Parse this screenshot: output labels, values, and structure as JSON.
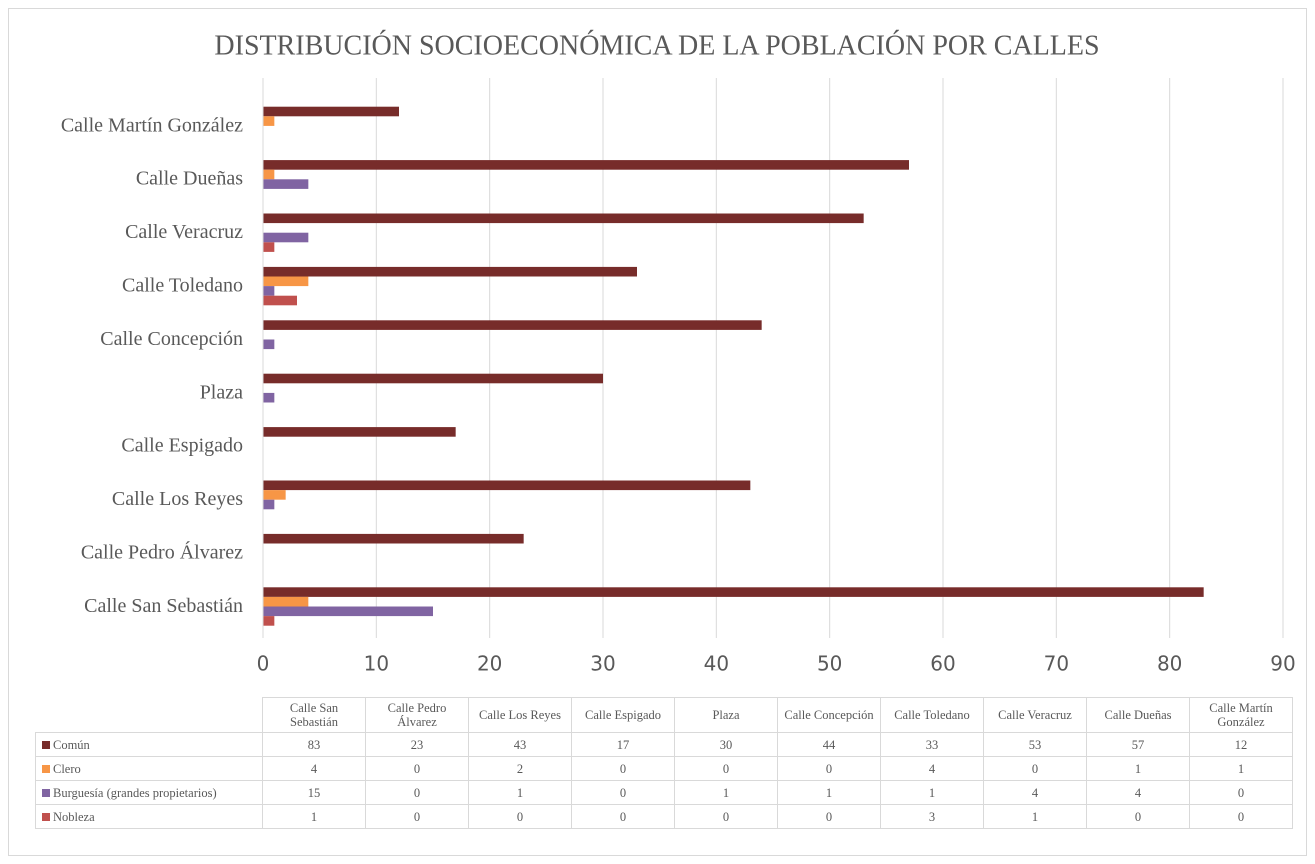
{
  "chart_data": {
    "type": "bar",
    "orientation": "horizontal",
    "title": "DISTRIBUCIÓN SOCIOECONÓMICA DE LA POBLACIÓN POR CALLES",
    "categories": [
      "Calle San Sebastián",
      "Calle Pedro Álvarez",
      "Calle Los Reyes",
      "Calle Espigado",
      "Plaza",
      "Calle Concepción",
      "Calle Toledano",
      "Calle Veracruz",
      "Calle Dueñas",
      "Calle Martín González"
    ],
    "series": [
      {
        "name": "Común",
        "color": "#772c2a",
        "values": [
          83,
          23,
          43,
          17,
          30,
          44,
          33,
          53,
          57,
          12
        ]
      },
      {
        "name": "Clero",
        "color": "#f79646",
        "values": [
          4,
          0,
          2,
          0,
          0,
          0,
          4,
          0,
          1,
          1
        ]
      },
      {
        "name": "Burguesía (grandes propietarios)",
        "color": "#8064a2",
        "values": [
          15,
          0,
          1,
          0,
          1,
          1,
          1,
          4,
          4,
          0
        ]
      },
      {
        "name": "Nobleza",
        "color": "#c0504d",
        "values": [
          1,
          0,
          0,
          0,
          0,
          0,
          3,
          1,
          0,
          0
        ]
      }
    ],
    "xlim": [
      0,
      90
    ],
    "xticks": [
      0,
      10,
      20,
      30,
      40,
      50,
      60,
      70,
      80,
      90
    ],
    "grid": true,
    "data_table": true
  }
}
